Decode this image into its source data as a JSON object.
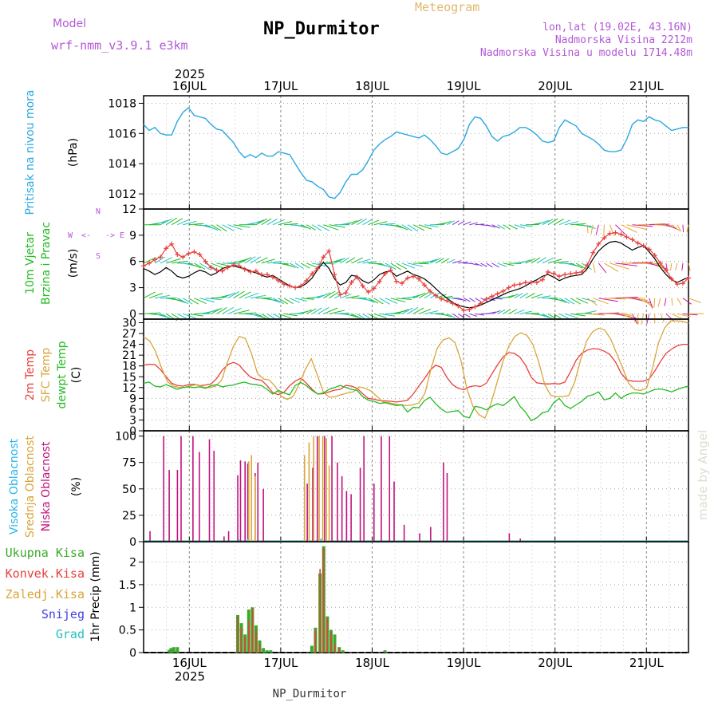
{
  "header": {
    "model_label": "Model",
    "model_name": "wrf-nmm_v3.9.1  e3km",
    "title": "NP_Durmitor",
    "subtitle": "Meteogram",
    "lonlat": "lon,lat (19.02E, 43.16N)",
    "elevation": "Nadmorska Visina 2212m",
    "model_elevation": "Nadmorska Visina u modelu 1714.48m",
    "footer_name": "NP_Durmitor",
    "credit": "made by Angel",
    "year": "2025",
    "year_bottom": "2025"
  },
  "colors": {
    "pressure": "#2aa8e0",
    "temp2m": "#e8403c",
    "sfc": "#d9a53a",
    "dewpt": "#22bb22",
    "cloud_high": "#29b6e8",
    "cloud_mid": "#d9a53a",
    "cloud_low": "#c0147e",
    "precip_total": "#3aaa2a",
    "precip_conv": "#e8403c",
    "snow": "#4040e0",
    "graupel": "#22c0c0"
  },
  "chart_data": [
    {
      "type": "line",
      "name": "pressure",
      "ylabel_main": "Pritisak na nivou mora",
      "ylabel_unit": "(hPa)",
      "ylim": [
        1011,
        1018.5
      ],
      "yticks": [
        1012,
        1014,
        1016,
        1018
      ],
      "x_start_day": 15.5,
      "x_end_day": 21.46,
      "xticks": [
        "16JUL",
        "17JUL",
        "18JUL",
        "19JUL",
        "20JUL",
        "21JUL"
      ],
      "values": [
        1016.6,
        1016.2,
        1016.4,
        1016.0,
        1015.9,
        1015.9,
        1016.8,
        1017.4,
        1017.7,
        1017.2,
        1017.1,
        1017.0,
        1016.6,
        1016.3,
        1016.2,
        1015.8,
        1015.4,
        1014.8,
        1014.4,
        1014.6,
        1014.4,
        1014.7,
        1014.5,
        1014.5,
        1014.8,
        1014.7,
        1014.6,
        1014.0,
        1013.4,
        1012.9,
        1012.8,
        1012.5,
        1012.3,
        1011.8,
        1011.7,
        1012.1,
        1012.8,
        1013.3,
        1013.3,
        1013.6,
        1014.2,
        1014.9,
        1015.3,
        1015.6,
        1015.8,
        1016.1,
        1016.0,
        1015.9,
        1015.8,
        1015.7,
        1015.9,
        1015.6,
        1015.2,
        1014.7,
        1014.6,
        1014.8,
        1015.0,
        1015.6,
        1016.6,
        1017.1,
        1017.0,
        1016.5,
        1015.8,
        1015.5,
        1015.8,
        1015.9,
        1016.1,
        1016.4,
        1016.4,
        1016.2,
        1015.9,
        1015.5,
        1015.4,
        1015.5,
        1016.4,
        1016.9,
        1016.7,
        1016.5,
        1016.0,
        1015.8,
        1015.6,
        1015.3,
        1014.9,
        1014.8,
        1014.8,
        1014.9,
        1015.6,
        1016.6,
        1016.9,
        1016.8,
        1017.1,
        1016.9,
        1016.8,
        1016.5,
        1016.2,
        1016.3,
        1016.4,
        1016.4
      ]
    },
    {
      "type": "line",
      "name": "wind",
      "ylabel_main": "10m Vjetar",
      "ylabel_sub": "Brzina i Pravac",
      "ylabel_unit": "(m/s)",
      "compass": {
        "n": "N",
        "w": "W",
        "e": "E",
        "s": "S",
        "arrow": "<-",
        "arrow_right": "->"
      },
      "ylim": [
        -0.6,
        12
      ],
      "yticks": [
        0,
        3,
        6,
        9,
        12
      ],
      "speed_black": [
        5.2,
        4.9,
        4.5,
        4.8,
        5.3,
        4.9,
        4.3,
        4.1,
        4.3,
        4.7,
        5.0,
        4.8,
        4.4,
        4.7,
        5.2,
        5.4,
        5.5,
        5.3,
        5.2,
        4.9,
        4.7,
        4.4,
        4.2,
        4.4,
        4.0,
        3.6,
        3.2,
        3.0,
        3.1,
        3.5,
        4.1,
        5.1,
        5.9,
        5.2,
        4.0,
        3.3,
        3.6,
        4.4,
        4.3,
        3.8,
        3.5,
        3.9,
        4.5,
        4.8,
        4.9,
        4.3,
        4.6,
        4.9,
        4.5,
        4.3,
        4.0,
        3.5,
        2.9,
        2.3,
        1.8,
        1.3,
        1.0,
        0.8,
        0.7,
        0.8,
        1.0,
        1.3,
        1.6,
        1.9,
        2.2,
        2.5,
        2.7,
        2.9,
        3.2,
        3.6,
        3.9,
        4.3,
        4.5,
        4.2,
        3.8,
        4.1,
        4.3,
        4.4,
        4.5,
        5.2,
        6.3,
        7.2,
        7.8,
        8.2,
        8.3,
        8.1,
        7.7,
        7.3,
        7.6,
        7.8,
        7.1,
        6.3,
        5.3,
        4.5,
        3.9,
        3.6,
        3.9,
        4.2
      ],
      "gust_red": [
        5.5,
        5.8,
        6.2,
        6.5,
        7.5,
        8.0,
        6.8,
        6.5,
        6.9,
        7.1,
        6.8,
        6.0,
        5.3,
        5.0,
        4.9,
        5.3,
        5.6,
        5.5,
        5.1,
        4.8,
        4.9,
        4.5,
        4.5,
        4.2,
        3.8,
        3.4,
        3.2,
        3.0,
        3.2,
        3.8,
        4.6,
        5.2,
        6.5,
        7.2,
        4.5,
        2.2,
        2.4,
        3.6,
        4.2,
        3.2,
        2.5,
        2.9,
        3.7,
        4.6,
        5.0,
        3.7,
        3.5,
        4.1,
        4.3,
        4.0,
        3.3,
        2.6,
        2.1,
        1.7,
        1.5,
        1.2,
        0.9,
        0.4,
        0.5,
        0.8,
        1.2,
        1.7,
        2.0,
        2.3,
        2.6,
        3.0,
        3.3,
        3.4,
        3.6,
        3.6,
        3.6,
        3.9,
        4.8,
        4.6,
        4.3,
        4.5,
        4.6,
        4.7,
        4.8,
        5.6,
        7.0,
        8.0,
        8.7,
        9.2,
        9.3,
        9.1,
        8.8,
        8.5,
        8.1,
        7.8,
        7.4,
        6.7,
        5.8,
        5.0,
        4.0,
        3.4,
        3.5,
        4.1
      ],
      "arrow_bands": [
        10.2,
        5.8,
        1.8,
        0
      ],
      "arrow_band_colors": [
        "#22c0c0",
        "#22bb22",
        "#e8a530",
        "#d018a0",
        "#8030d0"
      ]
    },
    {
      "type": "line",
      "name": "temperature",
      "ylabel_main": "2m Temp",
      "ylabel_sub": "SFC Temp",
      "ylabel_sub2": "dewpt Temp",
      "ylabel_unit": "(C)",
      "ylim": [
        0,
        31
      ],
      "yticks": [
        0,
        3,
        6,
        9,
        12,
        15,
        18,
        21,
        24,
        27,
        30
      ],
      "series": [
        {
          "name": "2m Temp",
          "values": [
            18.2,
            18.5,
            18.4,
            17.0,
            15.0,
            13.2,
            12.6,
            12.4,
            12.8,
            12.9,
            12.5,
            12.7,
            13.0,
            14.5,
            16.8,
            18.4,
            19.0,
            18.3,
            16.5,
            14.9,
            14.3,
            14.0,
            12.5,
            10.6,
            10.0,
            10.7,
            12.5,
            13.8,
            14.6,
            13.2,
            11.5,
            10.2,
            10.3,
            10.8,
            11.3,
            11.5,
            12.6,
            12.4,
            11.8,
            10.3,
            9.0,
            8.8,
            8.4,
            8.3,
            8.2,
            8.0,
            8.2,
            8.5,
            10.2,
            12.4,
            14.5,
            16.8,
            18.2,
            17.6,
            14.8,
            12.8,
            11.8,
            11.4,
            12.2,
            12.5,
            12.3,
            13.2,
            15.8,
            18.3,
            20.5,
            21.7,
            21.5,
            20.4,
            18.2,
            14.9,
            13.3,
            13.1,
            13.0,
            13.1,
            13.0,
            13.5,
            16.4,
            19.6,
            21.5,
            22.4,
            22.8,
            22.7,
            22.1,
            21.2,
            19.1,
            16.0,
            14.1,
            13.8,
            13.7,
            13.8,
            14.4,
            16.6,
            19.2,
            21.5,
            22.7,
            23.6,
            24.0,
            24.0
          ]
        },
        {
          "name": "SFC Temp",
          "values": [
            26.0,
            25.0,
            22.0,
            17.5,
            13.6,
            12.4,
            12.0,
            12.1,
            12.6,
            12.8,
            12.1,
            12.0,
            12.4,
            14.0,
            19.0,
            23.5,
            26.2,
            25.6,
            21.5,
            16.0,
            14.4,
            14.1,
            12.3,
            9.6,
            8.7,
            9.6,
            13.0,
            17.0,
            20.0,
            15.5,
            10.8,
            9.3,
            9.5,
            10.0,
            10.5,
            10.8,
            12.2,
            11.8,
            11.0,
            9.5,
            8.0,
            7.8,
            7.4,
            7.2,
            7.0,
            7.2,
            7.8,
            10.5,
            17.2,
            22.8,
            25.2,
            25.8,
            24.5,
            19.5,
            11.6,
            6.8,
            4.5,
            3.5,
            7.5,
            13.2,
            19.2,
            23.5,
            26.2,
            27.2,
            26.5,
            24.0,
            19.0,
            12.8,
            9.8,
            9.5,
            9.5,
            9.8,
            13.5,
            19.8,
            25.0,
            27.5,
            28.5,
            28.0,
            25.5,
            21.5,
            17.5,
            13.2,
            11.4,
            11.2,
            11.8,
            17.5,
            24.5,
            28.5,
            30.5,
            30.5,
            30.4,
            29.8
          ]
        },
        {
          "name": "dewpt Temp",
          "values": [
            13.2,
            13.5,
            12.4,
            12.2,
            12.8,
            12.2,
            11.5,
            12.0,
            12.2,
            12.0,
            12.2,
            11.8,
            12.5,
            12.8,
            12.2,
            12.5,
            12.7,
            13.2,
            13.5,
            13.0,
            12.8,
            12.5,
            11.5,
            10.2,
            11.2,
            10.5,
            10.0,
            12.6,
            13.4,
            12.5,
            11.2,
            10.2,
            10.5,
            11.5,
            12.0,
            12.6,
            12.0,
            11.5,
            11.2,
            9.5,
            8.5,
            8.2,
            7.6,
            7.8,
            7.4,
            7.0,
            7.2,
            5.2,
            6.5,
            6.4,
            8.4,
            9.3,
            7.5,
            6.0,
            5.1,
            5.4,
            5.6,
            4.0,
            3.6,
            6.8,
            6.5,
            5.8,
            6.8,
            7.5,
            7.0,
            8.2,
            9.5,
            6.8,
            5.2,
            2.8,
            3.6,
            5.0,
            5.4,
            7.8,
            9.0,
            7.0,
            6.2,
            7.2,
            8.2,
            9.6,
            10.0,
            10.8,
            8.6,
            9.0,
            10.5,
            9.0,
            10.0,
            10.5,
            10.5,
            10.2,
            10.8,
            11.5,
            11.6,
            11.3,
            10.8,
            11.5,
            12.0,
            12.4
          ]
        }
      ]
    },
    {
      "type": "bar",
      "name": "cloud",
      "ylabel_main": "Visoka Oblacnost",
      "ylabel_sub": "Srednja Oblacnost",
      "ylabel_sub2": "Niska Oblacnost",
      "ylabel_unit": "(%)",
      "ylim": [
        0,
        105
      ],
      "yticks": [
        0,
        25,
        50,
        75,
        100
      ],
      "low": [
        [
          15.57,
          10
        ],
        [
          15.72,
          100
        ],
        [
          15.78,
          68
        ],
        [
          15.87,
          68
        ],
        [
          15.91,
          100
        ],
        [
          16.04,
          100
        ],
        [
          16.11,
          85
        ],
        [
          16.22,
          97
        ],
        [
          16.27,
          86
        ],
        [
          16.38,
          5
        ],
        [
          16.43,
          10
        ],
        [
          16.53,
          63
        ],
        [
          16.56,
          77
        ],
        [
          16.61,
          76
        ],
        [
          16.64,
          74
        ],
        [
          16.72,
          65
        ],
        [
          16.75,
          75
        ],
        [
          16.81,
          50
        ],
        [
          17.29,
          55
        ],
        [
          17.35,
          70
        ],
        [
          17.4,
          100
        ],
        [
          17.48,
          100
        ],
        [
          17.56,
          100
        ],
        [
          17.62,
          75
        ],
        [
          17.67,
          62
        ],
        [
          17.72,
          48
        ],
        [
          17.77,
          45
        ],
        [
          17.87,
          70
        ],
        [
          17.91,
          100
        ],
        [
          18.02,
          55
        ],
        [
          18.1,
          100
        ],
        [
          18.19,
          100
        ],
        [
          18.24,
          57
        ],
        [
          18.35,
          16
        ],
        [
          18.52,
          8
        ],
        [
          18.64,
          14
        ],
        [
          18.78,
          75
        ],
        [
          18.82,
          65
        ],
        [
          19.5,
          8
        ],
        [
          19.62,
          3
        ]
      ],
      "mid": [
        [
          16.65,
          76
        ],
        [
          16.68,
          82
        ],
        [
          16.72,
          62
        ],
        [
          17.26,
          82
        ],
        [
          17.31,
          94
        ],
        [
          17.36,
          100
        ],
        [
          17.42,
          100
        ],
        [
          17.46,
          100
        ],
        [
          17.5,
          98
        ],
        [
          17.53,
          72
        ]
      ],
      "high": [
        [
          16.54,
          2
        ],
        [
          16.64,
          3
        ],
        [
          17.44,
          3
        ]
      ]
    },
    {
      "type": "bar",
      "name": "precip",
      "ylabel_main": "1hr Precip",
      "ylabel_unit": "(mm)",
      "ylim": [
        0,
        2.45
      ],
      "yticks": [
        0,
        0.5,
        1,
        1.5,
        2
      ],
      "ytick_labels": [
        "0",
        "0.5",
        "1",
        "1.5",
        "2"
      ],
      "legend": [
        "Ukupna Kisa",
        "Konvek.Kisa",
        "Zaledj.Kisa",
        "Snijeg",
        "Grad"
      ],
      "total": [
        [
          15.78,
          0.06
        ],
        [
          15.8,
          0.1
        ],
        [
          15.83,
          0.12
        ],
        [
          15.87,
          0.12
        ],
        [
          16.53,
          0.83
        ],
        [
          16.57,
          0.65
        ],
        [
          16.61,
          0.4
        ],
        [
          16.65,
          0.95
        ],
        [
          16.69,
          1.0
        ],
        [
          16.73,
          0.6
        ],
        [
          16.77,
          0.27
        ],
        [
          16.81,
          0.1
        ],
        [
          16.85,
          0.05
        ],
        [
          16.89,
          0.05
        ],
        [
          17.34,
          0.15
        ],
        [
          17.38,
          0.55
        ],
        [
          17.43,
          1.75
        ],
        [
          17.47,
          2.35
        ],
        [
          17.51,
          0.8
        ],
        [
          17.55,
          0.5
        ],
        [
          17.59,
          0.4
        ],
        [
          17.64,
          0.12
        ],
        [
          17.68,
          0.05
        ],
        [
          18.14,
          0.05
        ]
      ],
      "conv": [
        [
          16.53,
          0.8
        ],
        [
          16.57,
          0.55
        ],
        [
          16.61,
          0.35
        ],
        [
          16.65,
          0.7
        ],
        [
          16.69,
          0.98
        ],
        [
          16.73,
          0.5
        ],
        [
          16.77,
          0.2
        ],
        [
          17.38,
          0.5
        ],
        [
          17.43,
          1.85
        ],
        [
          17.47,
          2.3
        ],
        [
          17.51,
          0.75
        ],
        [
          17.55,
          0.45
        ],
        [
          17.59,
          0.2
        ],
        [
          17.64,
          0.1
        ]
      ]
    }
  ]
}
